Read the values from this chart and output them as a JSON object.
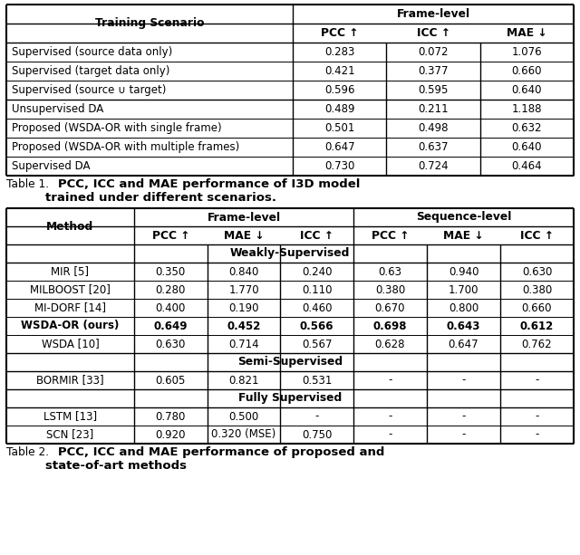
{
  "table1": {
    "title_normal": "Table 1.",
    "title_bold": "   PCC, ICC and MAE performance of I3D model\ntrained under different scenarios.",
    "rows_group1": [
      [
        "Supervised (source data only)",
        "0.283",
        "0.072",
        "1.076"
      ],
      [
        "Supervised (target data only)",
        "0.421",
        "0.377",
        "0.660"
      ],
      [
        "Supervised (source ∪ target)",
        "0.596",
        "0.595",
        "0.640"
      ]
    ],
    "rows_group2": [
      [
        "Unsupervised DA",
        "0.489",
        "0.211",
        "1.188"
      ],
      [
        "Proposed (WSDA-OR with single frame)",
        "0.501",
        "0.498",
        "0.632"
      ],
      [
        "Proposed (WSDA-OR with multiple frames)",
        "0.647",
        "0.637",
        "0.640"
      ],
      [
        "Supervised DA",
        "0.730",
        "0.724",
        "0.464"
      ]
    ]
  },
  "table2": {
    "title_normal": "Table 2.",
    "title_bold": "   PCC, ICC and MAE performance of proposed and\nstate-of-art methods",
    "section_weakly": "Weakly-Supervised",
    "rows_weakly": [
      [
        "MIR [5]",
        "0.350",
        "0.840",
        "0.240",
        "0.63",
        "0.940",
        "0.630",
        false
      ],
      [
        "MILBOOST [20]",
        "0.280",
        "1.770",
        "0.110",
        "0.380",
        "1.700",
        "0.380",
        false
      ],
      [
        "MI-DORF [14]",
        "0.400",
        "0.190",
        "0.460",
        "0.670",
        "0.800",
        "0.660",
        false
      ],
      [
        "WSDA-OR (ours)",
        "0.649",
        "0.452",
        "0.566",
        "0.698",
        "0.643",
        "0.612",
        true
      ],
      [
        "WSDA [10]",
        "0.630",
        "0.714",
        "0.567",
        "0.628",
        "0.647",
        "0.762",
        false
      ]
    ],
    "section_semi": "Semi-Supervised",
    "rows_semi": [
      [
        "BORMIR [33]",
        "0.605",
        "0.821",
        "0.531",
        "-",
        "-",
        "-",
        false
      ]
    ],
    "section_fully": "Fully Supervised",
    "rows_fully": [
      [
        "LSTM [13]",
        "0.780",
        "0.500",
        "-",
        "-",
        "-",
        "-",
        false
      ],
      [
        "SCN [23]",
        "0.920",
        "0.320 (MSE)",
        "0.750",
        "-",
        "-",
        "-",
        false
      ]
    ]
  }
}
